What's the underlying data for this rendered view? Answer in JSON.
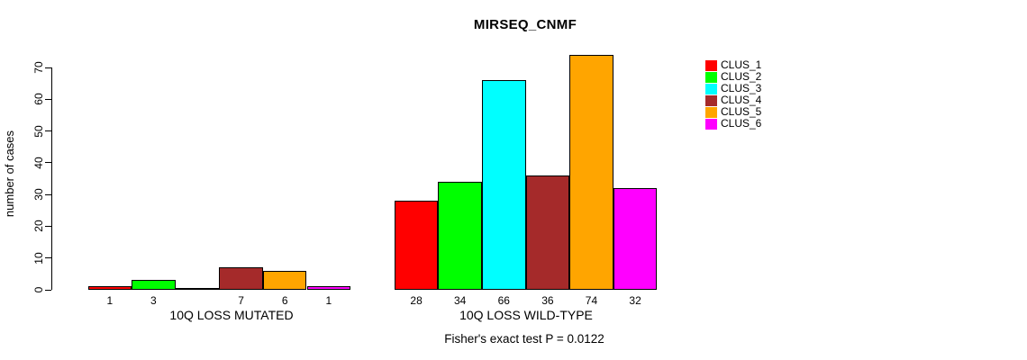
{
  "title": "MIRSEQ_CNMF",
  "chart_data": {
    "type": "bar",
    "title": "MIRSEQ_CNMF",
    "xlabel": "",
    "ylabel": "number of cases",
    "ylim": [
      0,
      70
    ],
    "yticks": [
      0,
      10,
      20,
      30,
      40,
      50,
      60,
      70
    ],
    "grid": false,
    "legend_position": "right",
    "categories": [
      "10Q LOSS MUTATED",
      "10Q LOSS WILD-TYPE"
    ],
    "series": [
      {
        "name": "CLUS_1",
        "color": "#ff0000",
        "values": [
          1,
          28
        ]
      },
      {
        "name": "CLUS_2",
        "color": "#00ff00",
        "values": [
          3,
          34
        ]
      },
      {
        "name": "CLUS_3",
        "color": "#00ffff",
        "values": [
          0,
          66
        ]
      },
      {
        "name": "CLUS_4",
        "color": "#a52a2a",
        "values": [
          7,
          36
        ]
      },
      {
        "name": "CLUS_5",
        "color": "#ffa500",
        "values": [
          6,
          74
        ]
      },
      {
        "name": "CLUS_6",
        "color": "#ff00ff",
        "values": [
          1,
          32
        ]
      }
    ],
    "bar_labels": [
      [
        "1",
        "3",
        "",
        "7",
        "6",
        "1"
      ],
      [
        "28",
        "34",
        "66",
        "36",
        "74",
        "32"
      ]
    ],
    "annotation": "Fisher's exact test P = 0.0122",
    "axis_color": "#000000",
    "bar_border_color": "#000000"
  }
}
